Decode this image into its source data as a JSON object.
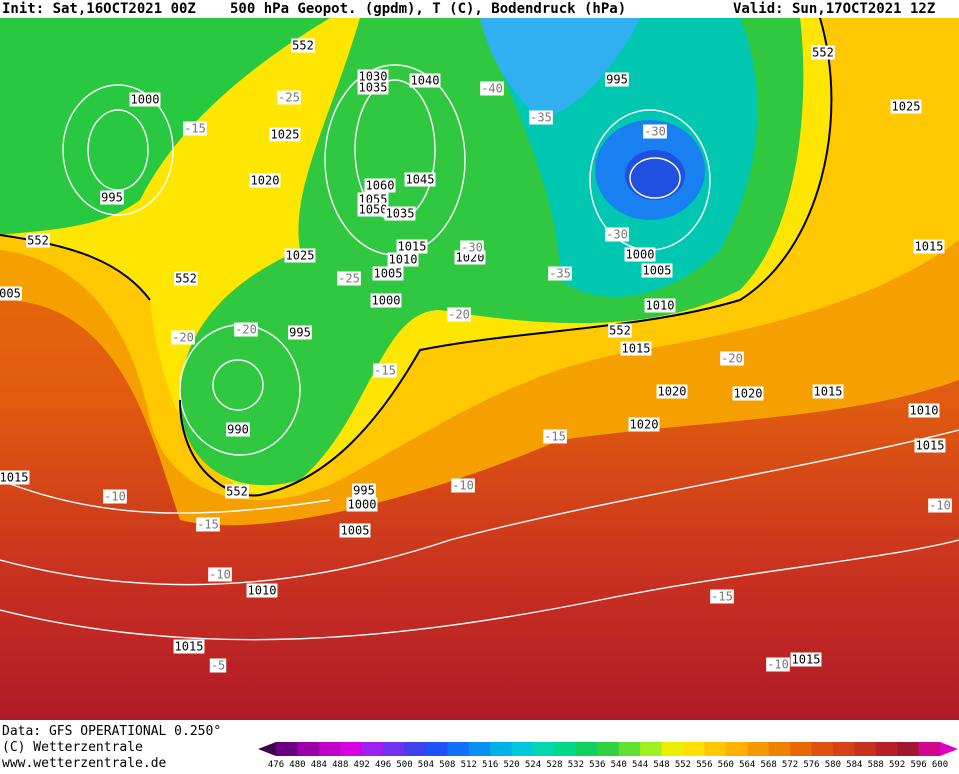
{
  "header": {
    "init": "Init: Sat,16OCT2021 00Z",
    "title": "500 hPa Geopot. (gpdm), T (C), Bodendruck (hPa)",
    "valid": "Valid: Sun,17OCT2021 12Z"
  },
  "footer": {
    "data": "Data: GFS OPERATIONAL 0.250°",
    "copyright": "(C) Wetterzentrale",
    "url": "www.wetterzentrale.de"
  },
  "map": {
    "pressure_labels": [
      "1000",
      "995",
      "1025",
      "1020",
      "1030",
      "1035",
      "1040",
      "1060",
      "1055",
      "1050",
      "1035",
      "1045",
      "1015",
      "1010",
      "1020",
      "1005",
      "1025",
      "1000",
      "995",
      "990",
      "995",
      "1000",
      "1005",
      "1010",
      "1015",
      "995",
      "1000",
      "1005",
      "1010",
      "1015",
      "1020",
      "1020",
      "1020",
      "1015",
      "1010",
      "1015",
      "1015",
      "1025",
      "1015",
      "1015",
      "005"
    ],
    "temperature_labels": [
      "-25",
      "-15",
      "-40",
      "-35",
      "-30",
      "-30",
      "-35",
      "-30",
      "-25",
      "-20",
      "-20",
      "-20",
      "-15",
      "-20",
      "-15",
      "-10",
      "-10",
      "-15",
      "-10",
      "-5",
      "-15",
      "-10",
      "-10"
    ],
    "height_labels": [
      "552",
      "552",
      "552",
      "552",
      "552",
      "552"
    ]
  },
  "colorbar": {
    "labels": [
      476,
      480,
      484,
      488,
      492,
      496,
      500,
      504,
      508,
      512,
      516,
      520,
      524,
      528,
      532,
      536,
      540,
      544,
      548,
      552,
      556,
      560,
      564,
      568,
      572,
      576,
      580,
      584,
      588,
      592,
      596,
      600
    ],
    "colors": [
      "#3a0050",
      "#6a0080",
      "#9a00a8",
      "#c000c8",
      "#d800e0",
      "#a020f0",
      "#7030f0",
      "#4040f0",
      "#2050f8",
      "#1070f8",
      "#0890f0",
      "#00b0e8",
      "#00c8d8",
      "#00d8b0",
      "#00d888",
      "#10d060",
      "#30d040",
      "#60e030",
      "#a0f020",
      "#e8f000",
      "#ffe000",
      "#ffc800",
      "#ffb000",
      "#f89800",
      "#f08000",
      "#e86800",
      "#e05010",
      "#d84018",
      "#c83020",
      "#b82028",
      "#a01830",
      "#d00890",
      "#e000c0"
    ]
  }
}
